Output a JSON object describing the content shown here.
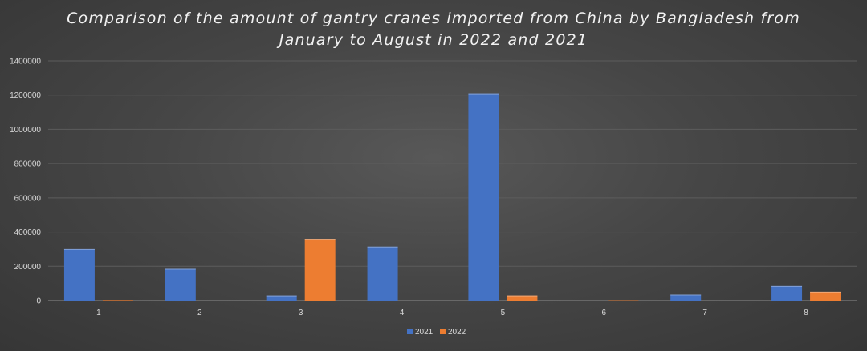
{
  "chart_data": {
    "type": "bar",
    "title_lines": [
      "Comparison of the amount of gantry cranes imported from China by Bangladesh from",
      "January to August in 2022 and 2021"
    ],
    "categories": [
      "1",
      "2",
      "3",
      "4",
      "5",
      "6",
      "7",
      "8"
    ],
    "series": [
      {
        "name": "2021",
        "color": "#4472c4",
        "values": [
          300000,
          185000,
          30000,
          315000,
          1210000,
          0,
          35000,
          85000
        ]
      },
      {
        "name": "2022",
        "color": "#ed7d31",
        "values": [
          3000,
          0,
          360000,
          0,
          30000,
          2000,
          0,
          52000
        ]
      }
    ],
    "ylim": [
      0,
      1400000
    ],
    "yticks": [
      "0",
      "200000",
      "400000",
      "600000",
      "800000",
      "1000000",
      "1200000",
      "1400000"
    ],
    "grid": true,
    "legend": "bottom"
  }
}
